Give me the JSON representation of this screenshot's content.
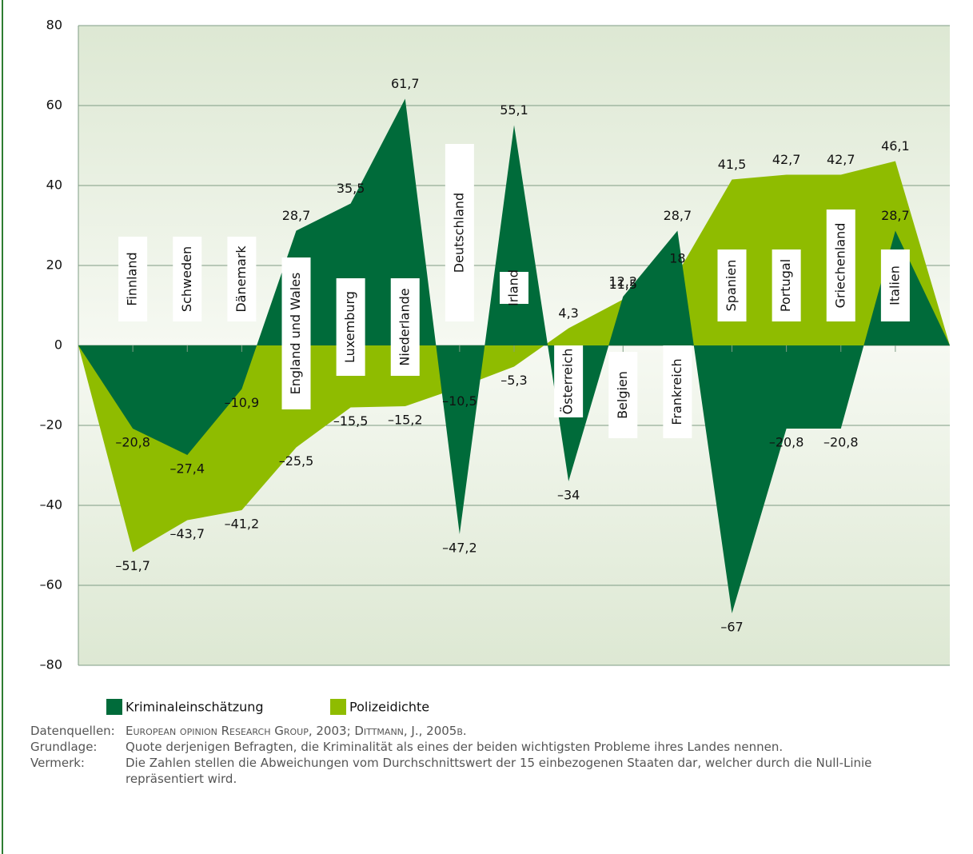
{
  "chart_data": {
    "type": "area",
    "categories": [
      null,
      "Finnland",
      "Schweden",
      "Dänemark",
      "England und Wales",
      "Luxemburg",
      "Niederlande",
      "Deutschland",
      "Irland",
      "Österreich",
      "Belgien",
      "Frankreich",
      "Spanien",
      "Portugal",
      "Griechenland",
      "Italien",
      null
    ],
    "series": [
      {
        "name": "Polizeidichte",
        "color": "#8fbc00",
        "values": [
          0,
          -51.7,
          -43.7,
          -41.2,
          -25.5,
          -15.5,
          -15.2,
          -10.5,
          -5.3,
          4.3,
          11.5,
          18,
          41.5,
          42.7,
          42.7,
          46.1,
          0
        ],
        "value_labels": [
          null,
          "–51,7",
          "–43,7",
          "–41,2",
          "–25,5",
          "–15,5",
          "–15,2",
          "–10,5",
          "–5,3",
          "4,3",
          "11,5",
          "18",
          "41,5",
          "42,7",
          "42,7",
          "46,1",
          null
        ]
      },
      {
        "name": "Kriminaleinschätzung",
        "color": "#006b3a",
        "values": [
          0,
          -20.8,
          -27.4,
          -10.9,
          28.7,
          35.5,
          61.7,
          -47.2,
          55.1,
          -34,
          12.2,
          28.7,
          -67,
          -20.8,
          -20.8,
          28.7,
          0
        ],
        "value_labels": [
          null,
          "–20,8",
          "–27,4",
          "–10,9",
          "28,7",
          "35,5",
          "61,7",
          "–47,2",
          "55,1",
          "–34",
          "12,2",
          "28,7",
          "–67",
          "–20,8",
          "–20,8",
          "28,7",
          null
        ]
      }
    ],
    "legend_order": [
      "Kriminaleinschätzung",
      "Polizeidichte"
    ],
    "ylim": [
      -80,
      80
    ],
    "yticks": [
      {
        "value": -80,
        "label": "–80"
      },
      {
        "value": -60,
        "label": "–60"
      },
      {
        "value": -40,
        "label": "–40"
      },
      {
        "value": -20,
        "label": "–20"
      },
      0,
      20,
      40,
      60,
      80
    ],
    "grid": true
  },
  "notes": [
    {
      "label": "Datenquellen:",
      "text": "European opinion Research Group, 2003; Dittmann, J., 2005b."
    },
    {
      "label": "Grundlage:",
      "text": "Quote derjenigen Befragten, die Kriminalität als eines der beiden wichtigsten Probleme ihres Landes nennen."
    },
    {
      "label": "Vermerk:",
      "text": "Die Zahlen stellen die Abweichungen vom Durchschnittswert der 15 einbezogenen Staaten dar, welcher durch die Null-Linie repräsentiert wird."
    }
  ]
}
